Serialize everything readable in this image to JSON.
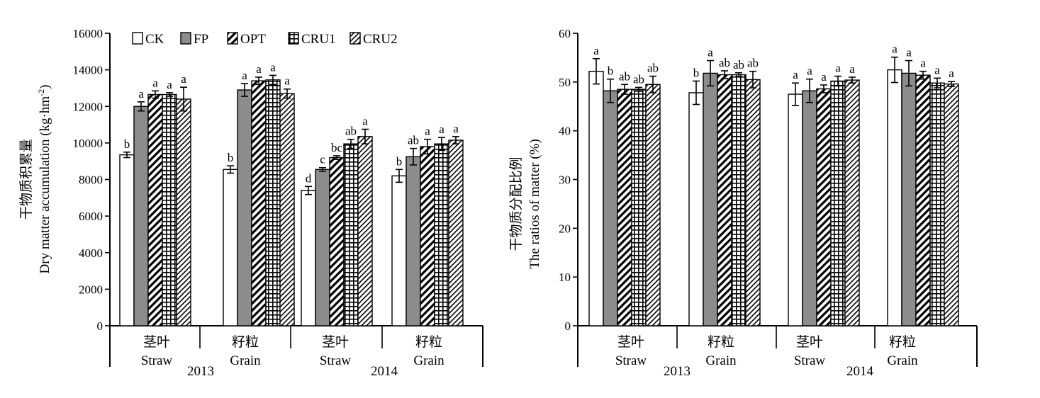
{
  "colors": {
    "CK": "#ffffff",
    "FP": "#8c8c8c",
    "OPT": "diagonal-hatch",
    "CRU1": "grid-hatch",
    "CRU2": "dense-diagonal-hatch"
  },
  "legend": [
    "CK",
    "FP",
    "OPT",
    "CRU1",
    "CRU2"
  ],
  "chart_data": [
    {
      "type": "bar",
      "ylabel_cn": "干物质积累量",
      "ylabel_en": "Dry matter accumulation (kg·hm",
      "ylabel_unit_sup": "-2",
      "ylabel_close": ")",
      "ylim": [
        0,
        16000
      ],
      "yticks": [
        "0",
        "2000",
        "4000",
        "6000",
        "8000",
        "10000",
        "12000",
        "14000",
        "16000"
      ],
      "groups": [
        {
          "cn": "茎叶",
          "en": "Straw"
        },
        {
          "cn": "籽粒",
          "en": "Grain"
        },
        {
          "cn": "茎叶",
          "en": "Straw"
        },
        {
          "cn": "籽粒",
          "en": "Grain"
        }
      ],
      "years": [
        "2013",
        "2014"
      ],
      "series": [
        {
          "name": "CK",
          "values": [
            9350,
            8550,
            7400,
            8200
          ],
          "err": [
            150,
            200,
            220,
            350
          ],
          "sig": [
            "b",
            "b",
            "d",
            "b"
          ]
        },
        {
          "name": "FP",
          "values": [
            12000,
            12900,
            8550,
            9250
          ],
          "err": [
            250,
            350,
            100,
            450
          ],
          "sig": [
            "a",
            "a",
            "c",
            "ab"
          ]
        },
        {
          "name": "OPT",
          "values": [
            12650,
            13400,
            9200,
            9800
          ],
          "err": [
            200,
            200,
            100,
            400
          ],
          "sig": [
            "a",
            "a",
            "bc",
            "a"
          ]
        },
        {
          "name": "CRU1",
          "values": [
            12650,
            13450,
            9950,
            9950
          ],
          "err": [
            100,
            250,
            250,
            350
          ],
          "sig": [
            "a",
            "a",
            "ab",
            "a"
          ]
        },
        {
          "name": "CRU2",
          "values": [
            12400,
            12700,
            10350,
            10150
          ],
          "err": [
            650,
            250,
            400,
            200
          ],
          "sig": [
            "a",
            "a",
            "a",
            "a"
          ]
        }
      ]
    },
    {
      "type": "bar",
      "ylabel_cn": "干物质分配比例",
      "ylabel_en": "The ratios of matter (%)",
      "ylim": [
        0,
        60
      ],
      "yticks": [
        "0",
        "10",
        "20",
        "30",
        "40",
        "50",
        "60"
      ],
      "groups": [
        {
          "cn": "茎叶",
          "en": "Straw"
        },
        {
          "cn": "籽粒",
          "en": "Grain"
        },
        {
          "cn": "茎叶",
          "en": "Straw"
        },
        {
          "cn": "籽粒",
          "en": "Grain"
        }
      ],
      "years": [
        "2013",
        "2014"
      ],
      "series": [
        {
          "name": "CK",
          "values": [
            52.2,
            47.8,
            47.5,
            52.5
          ],
          "err": [
            2.6,
            2.4,
            2.3,
            2.6
          ],
          "sig": [
            "a",
            "b",
            "a",
            "a"
          ]
        },
        {
          "name": "FP",
          "values": [
            48.2,
            51.8,
            48.2,
            51.8
          ],
          "err": [
            2.4,
            2.6,
            2.4,
            2.6
          ],
          "sig": [
            "b",
            "a",
            "a",
            "a"
          ]
        },
        {
          "name": "OPT",
          "values": [
            48.5,
            51.5,
            48.6,
            51.4
          ],
          "err": [
            1.0,
            0.8,
            0.8,
            0.8
          ],
          "sig": [
            "ab",
            "ab",
            "a",
            "a"
          ]
        },
        {
          "name": "CRU1",
          "values": [
            48.5,
            51.5,
            50.2,
            49.8
          ],
          "err": [
            0.4,
            0.4,
            1.0,
            1.0
          ],
          "sig": [
            "ab",
            "ab",
            "a",
            "a"
          ]
        },
        {
          "name": "CRU2",
          "values": [
            49.5,
            50.5,
            50.4,
            49.6
          ],
          "err": [
            1.7,
            1.7,
            0.6,
            0.5
          ],
          "sig": [
            "ab",
            "ab",
            "a",
            "a"
          ]
        }
      ]
    }
  ]
}
